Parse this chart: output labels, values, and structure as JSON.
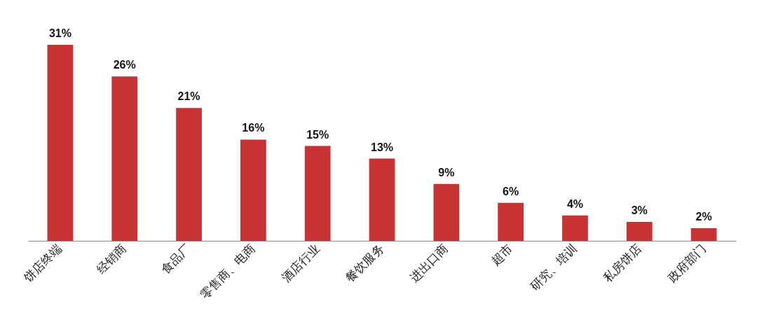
{
  "chart_data": {
    "type": "bar",
    "categories": [
      "饼店终端",
      "经销商",
      "食品厂",
      "零售商、电商",
      "酒店行业",
      "餐饮服务",
      "进出口商",
      "超市",
      "研究、培训",
      "私房饼店",
      "政府部门"
    ],
    "values": [
      31,
      26,
      21,
      16,
      15,
      13,
      9,
      6,
      4,
      3,
      2
    ],
    "value_labels": [
      "31%",
      "26%",
      "21%",
      "16%",
      "15%",
      "13%",
      "9%",
      "6%",
      "4%",
      "3%",
      "2%"
    ],
    "color": "#c83232",
    "grid": false
  }
}
